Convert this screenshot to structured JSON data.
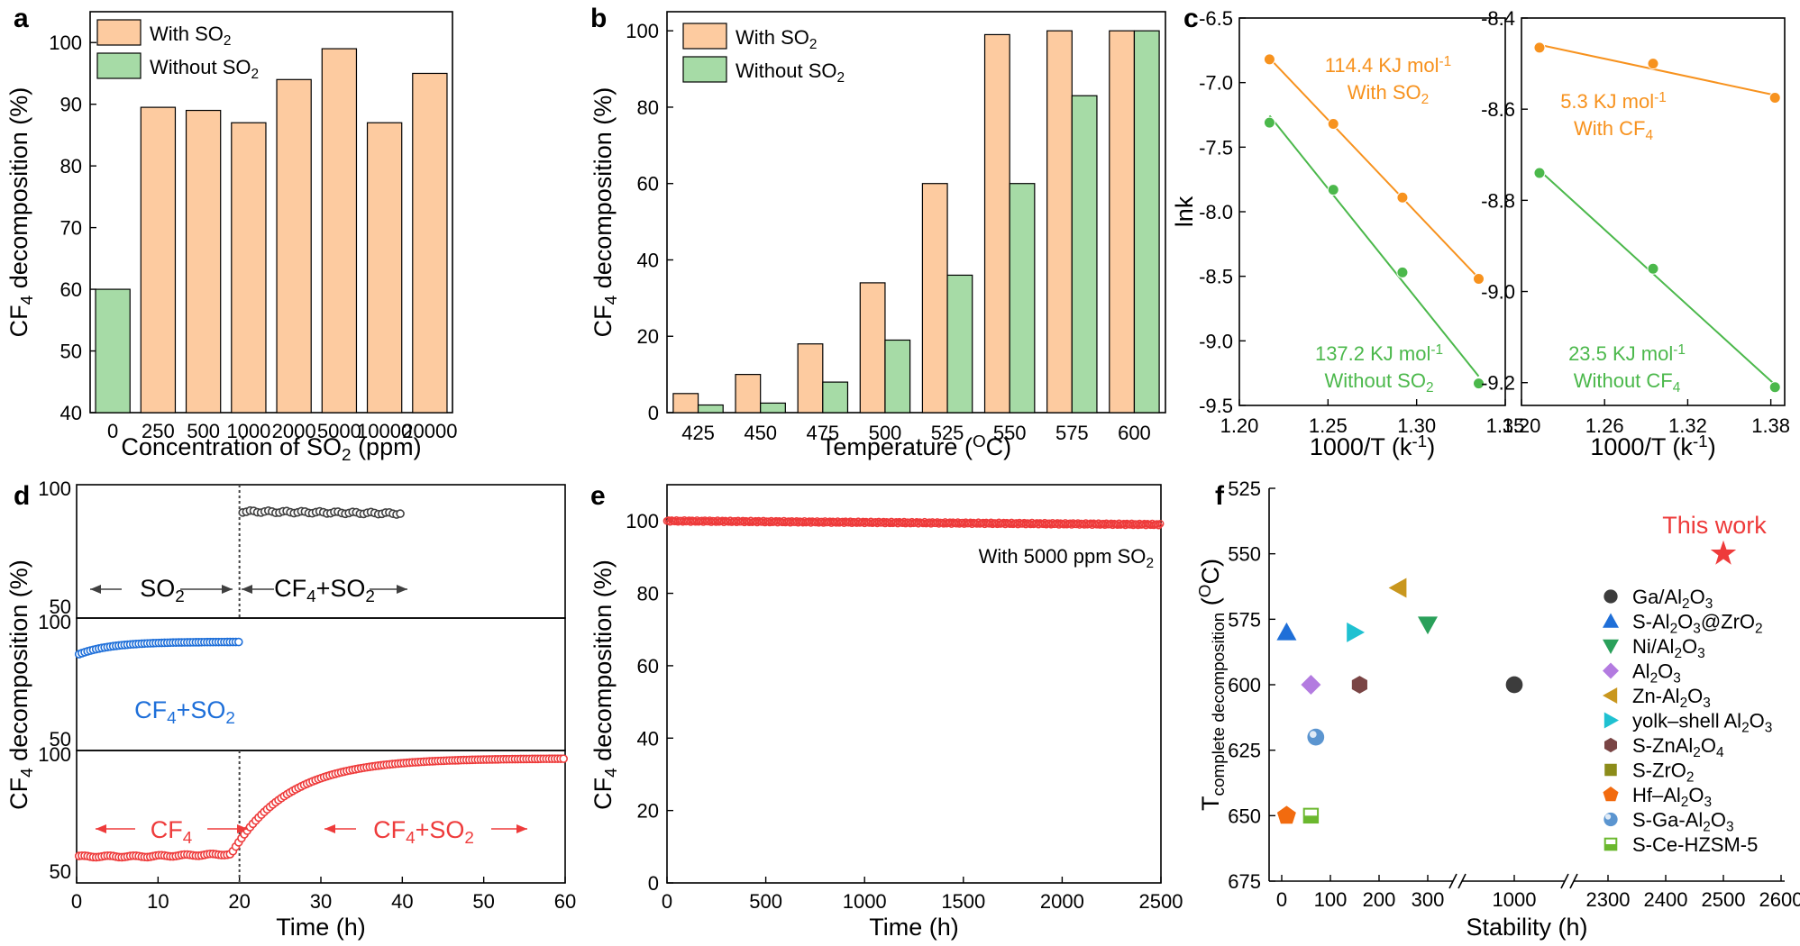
{
  "chart_data": [
    {
      "panel": "a",
      "type": "bar",
      "ylabel": "CF4 decomposition (%)",
      "xlabel": "Concentration of SO2 (ppm)",
      "ylim": [
        40,
        105
      ],
      "yticks": [
        "40",
        "50",
        "60",
        "70",
        "80",
        "90",
        "100"
      ],
      "categories": [
        "0",
        "250",
        "500",
        "1000",
        "2000",
        "5000",
        "10000",
        "20000"
      ],
      "series": [
        {
          "name": "With SO2",
          "color": "#FDCBA0",
          "values": [
            null,
            89.5,
            89,
            87,
            94,
            99,
            87,
            95
          ]
        },
        {
          "name": "Without SO2",
          "color": "#A6DBA6",
          "values": [
            60,
            null,
            null,
            null,
            null,
            null,
            null,
            null
          ]
        }
      ]
    },
    {
      "panel": "b",
      "type": "bar",
      "ylabel": "CF4 decomposition (%)",
      "xlabel": "Temperature (OC)",
      "ylim": [
        0,
        105
      ],
      "yticks": [
        "0",
        "20",
        "40",
        "60",
        "80",
        "100"
      ],
      "categories": [
        "425",
        "450",
        "475",
        "500",
        "525",
        "550",
        "575",
        "600"
      ],
      "series": [
        {
          "name": "With SO2",
          "color": "#FDCBA0",
          "values": [
            5,
            10,
            18,
            34,
            60,
            99,
            100,
            100
          ]
        },
        {
          "name": "Without SO2",
          "color": "#A6DBA6",
          "values": [
            2,
            2.5,
            8,
            19,
            36,
            60,
            83,
            100
          ]
        }
      ]
    },
    {
      "panel": "c-left",
      "type": "scatter",
      "ylabel": "lnk",
      "xlabel": "1000/T (k-1)",
      "xlim": [
        1.2,
        1.35
      ],
      "ylim": [
        -9.5,
        -6.5
      ],
      "xticks": [
        "1.20",
        "1.25",
        "1.30",
        "1.35"
      ],
      "yticks": [
        "-6.5",
        "-7.0",
        "-7.5",
        "-8.0",
        "-8.5",
        "-9.0",
        "-9.5"
      ],
      "series": [
        {
          "name": "With SO2",
          "color": "#F7921E",
          "annotation": "114.4 KJ mol-1",
          "annotation2": "With SO2",
          "x": [
            1.217,
            1.253,
            1.292,
            1.335
          ],
          "y": [
            -6.82,
            -7.32,
            -7.89,
            -8.52
          ]
        },
        {
          "name": "Without SO2",
          "color": "#4BB84B",
          "annotation": "137.2 KJ mol-1",
          "annotation2": "Without SO2",
          "x": [
            1.217,
            1.253,
            1.292,
            1.335
          ],
          "y": [
            -7.31,
            -7.83,
            -8.47,
            -9.33
          ]
        }
      ]
    },
    {
      "panel": "c-right",
      "type": "scatter",
      "ylabel": "",
      "xlabel": "1000/T (k-1)",
      "xlim": [
        1.2,
        1.39
      ],
      "ylim": [
        -9.25,
        -8.4
      ],
      "xticks": [
        "1.20",
        "1.26",
        "1.32",
        "1.38"
      ],
      "yticks": [
        "-8.4",
        "-8.6",
        "-8.8",
        "-9.0",
        "-9.2"
      ],
      "series": [
        {
          "name": "With CF4",
          "color": "#F7921E",
          "annotation": "5.3 KJ mol-1",
          "annotation2": "With CF4",
          "x": [
            1.213,
            1.295,
            1.383
          ],
          "y": [
            -8.465,
            -8.5,
            -8.575
          ]
        },
        {
          "name": "Without CF4",
          "color": "#4BB84B",
          "annotation": "23.5 KJ mol-1",
          "annotation2": "Without CF4",
          "x": [
            1.213,
            1.295,
            1.383
          ],
          "y": [
            -8.74,
            -8.95,
            -9.21
          ]
        }
      ]
    },
    {
      "panel": "d",
      "type": "scatter",
      "ylabel": "CF4 decomposition (%)",
      "xlabel": "Time (h)",
      "xlim": [
        0,
        60
      ],
      "xticks": [
        "0",
        "10",
        "20",
        "30",
        "40",
        "50",
        "60"
      ],
      "subplots": [
        {
          "ytop": "100",
          "ybottom": "50",
          "color": "#404040",
          "left_text": "SO2",
          "right_text": "CF4+SO2",
          "t_start": 20,
          "t_end": 40,
          "level": 90
        },
        {
          "ytop": "100",
          "ybottom": "50",
          "color": "#1E6FD9",
          "text": "CF4+SO2",
          "t_start": 0,
          "t_end": 20,
          "level_start": 86,
          "level_end": 91
        },
        {
          "ytop": "100",
          "ybottom": "50",
          "color": "#EE3B3B",
          "left_text": "CF4",
          "right_text": "CF4+SO2",
          "t_start": 0,
          "t_end": 60,
          "level_plateau": 60,
          "level_final": 97
        }
      ]
    },
    {
      "panel": "e",
      "type": "line",
      "ylabel": "CF4 decomposition (%)",
      "xlabel": "Time (h)",
      "xlim": [
        0,
        2500
      ],
      "ylim": [
        0,
        110
      ],
      "xticks": [
        "0",
        "500",
        "1000",
        "1500",
        "2000",
        "2500"
      ],
      "yticks": [
        "0",
        "20",
        "40",
        "60",
        "80",
        "100"
      ],
      "annotation": "With 5000 ppm SO2",
      "color": "#EE3B3B",
      "x": [
        0,
        2500
      ],
      "y": [
        100,
        99
      ]
    },
    {
      "panel": "f",
      "type": "scatter",
      "ylabel": "Tcomplete decomposition (OC)",
      "xlabel": "Stability (h)",
      "yticks": [
        "525",
        "550",
        "575",
        "600",
        "625",
        "650",
        "675"
      ],
      "xticks": [
        "0",
        "100",
        "200",
        "300",
        "1000",
        "2300",
        "2400",
        "2500",
        "2600"
      ],
      "highlight": "This work",
      "series": [
        {
          "name": "Ga/Al2O3",
          "marker": "circle",
          "color": "#3C3C3C",
          "x": 1000,
          "y": 600
        },
        {
          "name": "S-Al2O3@ZrO2",
          "marker": "triangle-up",
          "color": "#1F6FD8",
          "x": 10,
          "y": 580
        },
        {
          "name": "Ni/Al2O3",
          "marker": "triangle-down",
          "color": "#2AA05A",
          "x": 300,
          "y": 577
        },
        {
          "name": "Al2O3",
          "marker": "diamond",
          "color": "#B37BE0",
          "x": 60,
          "y": 600
        },
        {
          "name": "Zn-Al2O3",
          "marker": "triangle-left",
          "color": "#C9971E",
          "x": 240,
          "y": 563
        },
        {
          "name": "yolk–shell Al2O3",
          "marker": "triangle-right",
          "color": "#1FC1D1",
          "x": 150,
          "y": 580
        },
        {
          "name": "S-ZnAl2O4",
          "marker": "hexagon",
          "color": "#7A4545",
          "x": 160,
          "y": 600
        },
        {
          "name": "S-ZrO2",
          "marker": "square",
          "color": "#8C8C1A",
          "x": null,
          "y": null
        },
        {
          "name": "Hf–Al2O3",
          "marker": "pentagon",
          "color": "#F26B0F",
          "x": 10,
          "y": 650
        },
        {
          "name": "S-Ga-Al2O3",
          "marker": "sphere",
          "color": "#5B95D0",
          "x": 70,
          "y": 620
        },
        {
          "name": "S-Ce-HZSM-5",
          "marker": "half-square",
          "color": "#6BB82E",
          "x": 60,
          "y": 650
        },
        {
          "name": "This work",
          "marker": "star",
          "color": "#EE3B3B",
          "x": 2500,
          "y": 550
        }
      ]
    }
  ]
}
